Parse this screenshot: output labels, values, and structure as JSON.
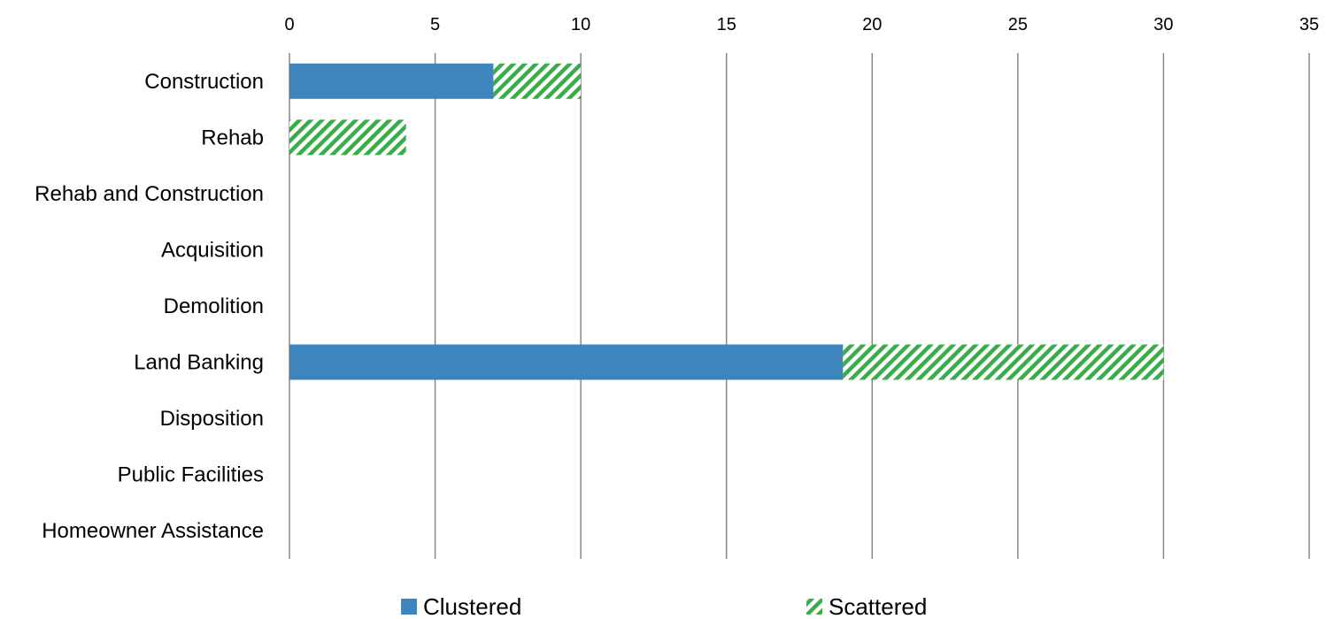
{
  "chart_data": {
    "type": "bar",
    "orientation": "horizontal",
    "stacked": true,
    "categories": [
      "Construction",
      "Rehab",
      "Rehab and Construction",
      "Acquisition",
      "Demolition",
      "Land Banking",
      "Disposition",
      "Public Facilities",
      "Homeowner Assistance"
    ],
    "series": [
      {
        "name": "Clustered",
        "color": "#3d85bc",
        "pattern": "solid",
        "values": [
          7,
          0,
          0,
          0,
          0,
          19,
          0,
          0,
          0
        ]
      },
      {
        "name": "Scattered",
        "color": "#3aad4a",
        "pattern": "diagonal-hatch",
        "values": [
          3,
          4,
          0,
          0,
          0,
          11,
          0,
          0,
          0
        ]
      }
    ],
    "xlim": [
      0,
      35
    ],
    "x_ticks": [
      0,
      5,
      10,
      15,
      20,
      25,
      30,
      35
    ],
    "x_axis_position": "top",
    "grid": "vertical",
    "legend_position": "bottom",
    "title": "",
    "xlabel": "",
    "ylabel": ""
  }
}
